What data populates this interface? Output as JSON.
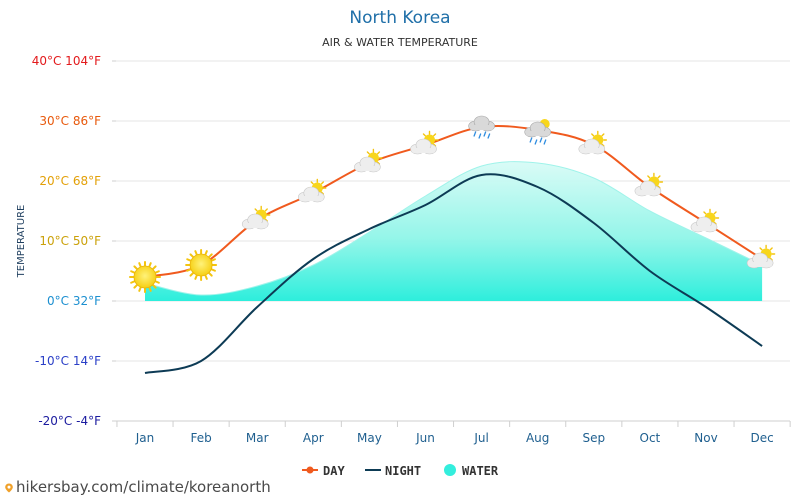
{
  "chart_data": {
    "type": "line",
    "title": "North Korea",
    "subtitle": "AIR & WATER TEMPERATURE",
    "ylabel": "TEMPERATURE",
    "xlabel": "",
    "categories": [
      "Jan",
      "Feb",
      "Mar",
      "Apr",
      "May",
      "Jun",
      "Jul",
      "Aug",
      "Sep",
      "Oct",
      "Nov",
      "Dec"
    ],
    "ylim": [
      -20,
      40
    ],
    "y_ticks": [
      {
        "value": 40,
        "label": "40°C 104°F",
        "color": "#e31a1c"
      },
      {
        "value": 30,
        "label": "30°C 86°F",
        "color": "#e8590c"
      },
      {
        "value": 20,
        "label": "20°C 68°F",
        "color": "#e3a008"
      },
      {
        "value": 10,
        "label": "10°C 50°F",
        "color": "#cba10a"
      },
      {
        "value": 0,
        "label": "0°C 32°F",
        "color": "#1c8fd0"
      },
      {
        "value": -10,
        "label": "-10°C 14°F",
        "color": "#2a3fc7"
      },
      {
        "value": -20,
        "label": "-20°C -4°F",
        "color": "#1b1b9f"
      }
    ],
    "series": [
      {
        "name": "DAY",
        "type": "line",
        "color": "#f05a1e",
        "values": [
          4,
          6,
          13.5,
          18,
          23,
          26,
          29,
          28.5,
          26,
          19,
          13,
          7
        ]
      },
      {
        "name": "NIGHT",
        "type": "line",
        "color": "#0d3b55",
        "values": [
          -12,
          -10,
          -1,
          7,
          12,
          16,
          21,
          19,
          13,
          5,
          -1,
          -7.5
        ]
      },
      {
        "name": "WATER",
        "type": "area",
        "color": "#33eedd",
        "values": [
          3,
          1,
          2.5,
          6,
          11.5,
          17.5,
          22.5,
          23,
          20.5,
          15,
          10.5,
          6
        ]
      }
    ],
    "weather_icons": [
      "sun",
      "sun",
      "partly-cloudy-icon",
      "partly-cloudy-icon",
      "partly-cloudy-icon",
      "partly-cloudy-icon",
      "rain-cloud-icon",
      "rain-sun-cloud-icon",
      "partly-cloudy-icon",
      "partly-cloudy-icon",
      "partly-cloudy-icon",
      "partly-cloudy-icon"
    ],
    "grid": true,
    "legend_position": "bottom"
  },
  "footer": {
    "source_text": "hikersbay.com/climate/koreanorth"
  }
}
